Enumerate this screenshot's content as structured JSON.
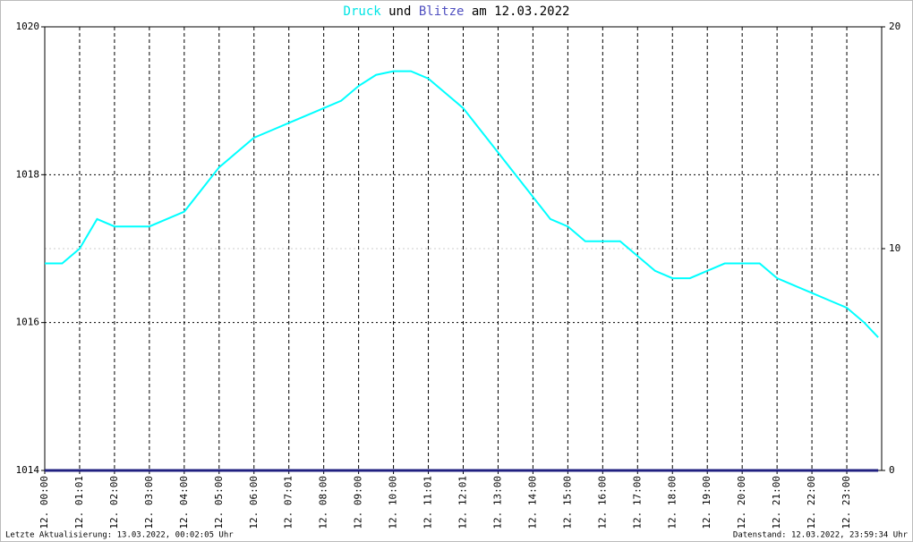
{
  "chart_data": {
    "type": "line",
    "title_parts": [
      {
        "text": "Druck",
        "color": "#00e5e5"
      },
      {
        "text": "und",
        "color": "#000000"
      },
      {
        "text": "Blitze",
        "color": "#5050c0"
      },
      {
        "text": "am 12.03.2022",
        "color": "#000000"
      }
    ],
    "x": [
      0,
      0.5,
      1,
      1.5,
      2,
      2.5,
      3,
      3.5,
      4,
      4.5,
      5,
      5.5,
      6,
      6.5,
      7,
      7.5,
      8,
      8.5,
      9,
      9.5,
      10,
      10.5,
      11,
      11.5,
      12,
      12.5,
      13,
      13.5,
      14,
      14.5,
      15,
      15.5,
      16,
      16.5,
      17,
      17.5,
      18,
      18.5,
      19,
      19.5,
      20,
      20.5,
      21,
      21.5,
      22,
      22.5,
      23,
      23.5,
      23.9
    ],
    "series": [
      {
        "name": "Druck",
        "color": "#00ffff",
        "values": [
          1016.8,
          1016.8,
          1017.0,
          1017.4,
          1017.3,
          1017.3,
          1017.3,
          1017.4,
          1017.5,
          1017.8,
          1018.1,
          1018.3,
          1018.5,
          1018.6,
          1018.7,
          1018.8,
          1018.9,
          1019.0,
          1019.2,
          1019.35,
          1019.4,
          1019.4,
          1019.3,
          1019.1,
          1018.9,
          1018.6,
          1018.3,
          1018.0,
          1017.7,
          1017.4,
          1017.3,
          1017.1,
          1017.1,
          1017.1,
          1016.9,
          1016.7,
          1016.6,
          1016.6,
          1016.7,
          1016.8,
          1016.8,
          1016.8,
          1016.6,
          1016.5,
          1016.4,
          1016.3,
          1016.2,
          1016.0,
          1015.8
        ]
      },
      {
        "name": "Blitze",
        "color": "#202080",
        "axis": "y2",
        "values": [
          0,
          0,
          0,
          0,
          0,
          0,
          0,
          0,
          0,
          0,
          0,
          0,
          0,
          0,
          0,
          0,
          0,
          0,
          0,
          0,
          0,
          0,
          0,
          0,
          0,
          0,
          0,
          0,
          0,
          0,
          0,
          0,
          0,
          0,
          0,
          0,
          0,
          0,
          0,
          0,
          0,
          0,
          0,
          0,
          0,
          0,
          0,
          0,
          0
        ]
      }
    ],
    "xlim": [
      0,
      24
    ],
    "xticks": [
      {
        "value": 0,
        "label": "12. 00:00"
      },
      {
        "value": 1,
        "label": "12. 01:01"
      },
      {
        "value": 2,
        "label": "12. 02:00"
      },
      {
        "value": 3,
        "label": "12. 03:00"
      },
      {
        "value": 4,
        "label": "12. 04:00"
      },
      {
        "value": 5,
        "label": "12. 05:00"
      },
      {
        "value": 6,
        "label": "12. 06:00"
      },
      {
        "value": 7,
        "label": "12. 07:01"
      },
      {
        "value": 8,
        "label": "12. 08:00"
      },
      {
        "value": 9,
        "label": "12. 09:00"
      },
      {
        "value": 10,
        "label": "12. 10:00"
      },
      {
        "value": 11,
        "label": "12. 11:01"
      },
      {
        "value": 12,
        "label": "12. 12:01"
      },
      {
        "value": 13,
        "label": "12. 13:00"
      },
      {
        "value": 14,
        "label": "12. 14:00"
      },
      {
        "value": 15,
        "label": "12. 15:00"
      },
      {
        "value": 16,
        "label": "12. 16:00"
      },
      {
        "value": 17,
        "label": "12. 17:00"
      },
      {
        "value": 18,
        "label": "12. 18:00"
      },
      {
        "value": 19,
        "label": "12. 19:00"
      },
      {
        "value": 20,
        "label": "12. 20:00"
      },
      {
        "value": 21,
        "label": "12. 21:00"
      },
      {
        "value": 22,
        "label": "12. 22:00"
      },
      {
        "value": 23,
        "label": "12. 23:00"
      }
    ],
    "ylim": [
      1014,
      1020
    ],
    "yticks": [
      1014,
      1016,
      1018,
      1020
    ],
    "y2lim": [
      0,
      20
    ],
    "y2ticks": [
      0,
      10,
      20
    ],
    "grid": true,
    "footer_left": "Letzte Aktualisierung: 13.03.2022, 00:02:05 Uhr",
    "footer_right": "Datenstand: 12.03.2022, 23:59:34 Uhr"
  }
}
